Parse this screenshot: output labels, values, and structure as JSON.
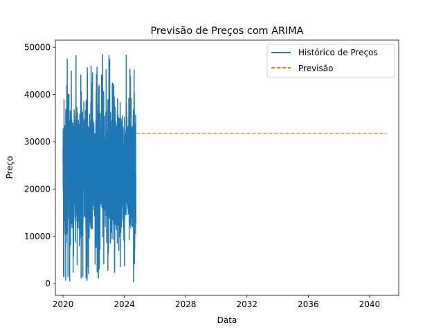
{
  "chart_data": {
    "type": "line",
    "title": "Previsão de Preços com ARIMA",
    "xlabel": "Data",
    "ylabel": "Preço",
    "xlim": [
      2019.5,
      2041.9
    ],
    "ylim": [
      -2500,
      51500
    ],
    "x_ticks": [
      2020,
      2024,
      2028,
      2032,
      2036,
      2040
    ],
    "x_tick_labels": [
      "2020",
      "2024",
      "2028",
      "2032",
      "2036",
      "2040"
    ],
    "y_ticks": [
      0,
      10000,
      20000,
      30000,
      40000,
      50000
    ],
    "y_tick_labels": [
      "0",
      "10000",
      "20000",
      "30000",
      "40000",
      "50000"
    ],
    "grid": false,
    "legend_position": "top-right",
    "series": [
      {
        "name": "Histórico de Preços",
        "style": "solid",
        "color": "#1f77b4",
        "x_start": 2020.0,
        "x_end": 2024.75,
        "y_min": 300,
        "y_max": 48900
      },
      {
        "name": "Previsão",
        "style": "dashed",
        "color": "#ff7f0e",
        "x": [
          2024.75,
          2041.1
        ],
        "y": [
          31800,
          31800
        ]
      }
    ]
  }
}
